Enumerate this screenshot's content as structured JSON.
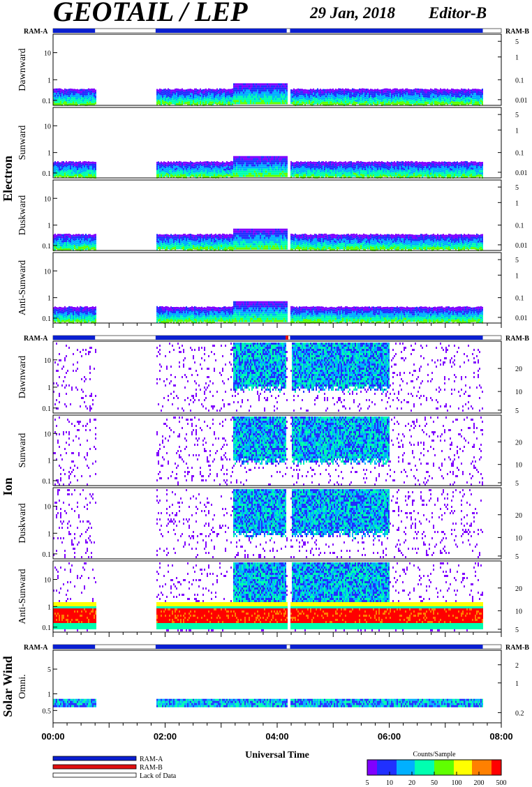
{
  "title": "GEOTAIL / LEP",
  "date": "29 Jan, 2018",
  "editor": "Editor-B",
  "colors": {
    "ram_a": "#0a1fd0",
    "ram_b": "#e01010",
    "lack": "#ffffff"
  },
  "chart_data": {
    "type": "heatmap",
    "xlabel": "Universal Time",
    "x_ticks": [
      "00:00",
      "02:00",
      "04:00",
      "06:00",
      "08:00"
    ],
    "x_range_hours": [
      0,
      8
    ],
    "data_intervals_hours": [
      [
        0.0,
        0.75
      ],
      [
        1.83,
        4.17
      ],
      [
        4.23,
        7.67
      ]
    ],
    "ram_bar": {
      "ram_a_label": "RAM-A",
      "ram_b_label": "RAM-B"
    },
    "groups": [
      {
        "name": "Electron",
        "panels": [
          {
            "label": "Dawnward",
            "left_ticks": [
              "10",
              "1",
              "0.1"
            ],
            "right_ticks": [
              "5",
              "1",
              "0.1",
              "0.01"
            ]
          },
          {
            "label": "Sunward",
            "left_ticks": [
              "10",
              "1",
              "0.1"
            ],
            "right_ticks": [
              "5",
              "1",
              "0.1",
              "0.01"
            ]
          },
          {
            "label": "Duskward",
            "left_ticks": [
              "10",
              "1",
              "0.1"
            ],
            "right_ticks": [
              "5",
              "1",
              "0.1",
              "0.01"
            ]
          },
          {
            "label": "Anti-Sunward",
            "left_ticks": [
              "10",
              "1",
              "0.1"
            ],
            "right_ticks": [
              "5",
              "1",
              "0.1",
              "0.01"
            ]
          }
        ]
      },
      {
        "name": "Ion",
        "panels": [
          {
            "label": "Dawnward",
            "left_ticks": [
              "10",
              "1",
              "0.1"
            ],
            "right_ticks": [
              "20",
              "10",
              "5"
            ]
          },
          {
            "label": "Sunward",
            "left_ticks": [
              "10",
              "1",
              "0.1"
            ],
            "right_ticks": [
              "20",
              "10",
              "5"
            ]
          },
          {
            "label": "Duskward",
            "left_ticks": [
              "10",
              "1",
              "0.1"
            ],
            "right_ticks": [
              "20",
              "10",
              "5"
            ]
          },
          {
            "label": "Anti-Sunward",
            "left_ticks": [
              "10",
              "1",
              "0.1"
            ],
            "right_ticks": [
              "20",
              "10",
              "5"
            ]
          }
        ]
      },
      {
        "name": "Solar Wind",
        "panels": [
          {
            "label": "Omni.",
            "left_ticks": [
              "5",
              "1",
              "0.5"
            ],
            "right_ticks": [
              "2",
              "1",
              "0.2"
            ]
          }
        ]
      }
    ],
    "legend": {
      "items": [
        "RAM-A",
        "RAM-B",
        "Lack of Data"
      ]
    },
    "colorbar": {
      "title": "Counts/Sample",
      "ticks": [
        "5",
        "10",
        "20",
        "50",
        "100",
        "200",
        "500"
      ],
      "colors": [
        "#8000ff",
        "#2030ff",
        "#00b0ff",
        "#00ffb0",
        "#60ff00",
        "#ffff00",
        "#ff8000",
        "#ff0000"
      ]
    }
  }
}
